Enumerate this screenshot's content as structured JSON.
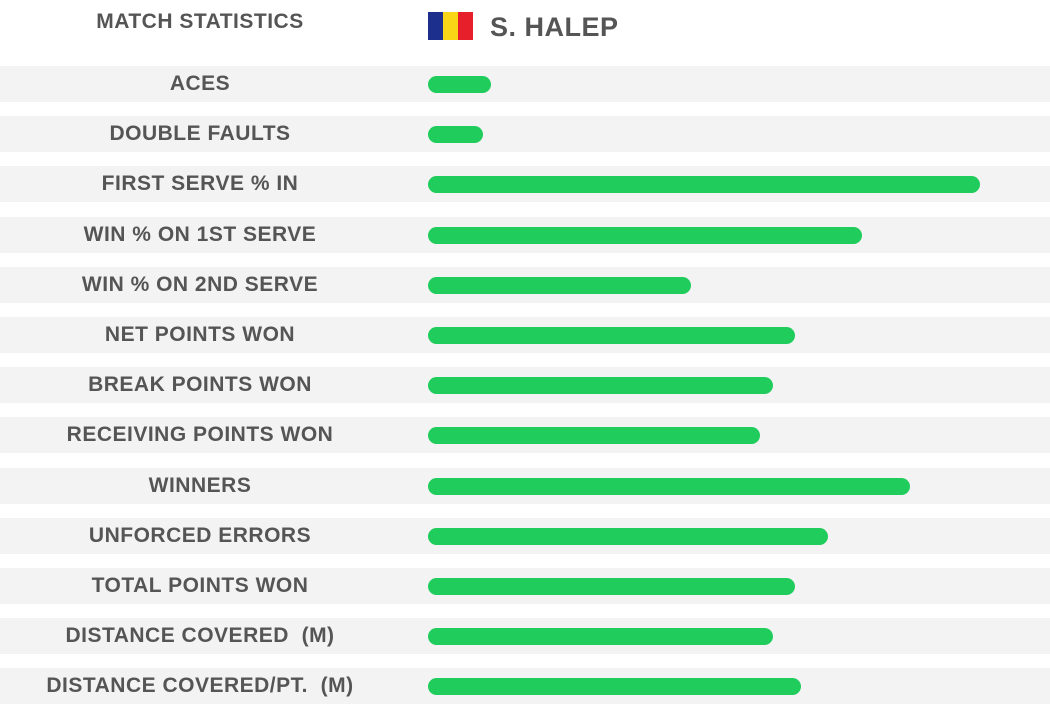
{
  "header": {
    "title": "MATCH STATISTICS",
    "player_name": "S. HALEP",
    "flag_colors": [
      "#1c2f8c",
      "#f9d616",
      "#e61f2b"
    ],
    "flag-icon": "romania-flag-icon"
  },
  "bar_color": "#1fcc5c",
  "stats": [
    {
      "label": "ACES",
      "level": 0.115
    },
    {
      "label": "DOUBLE FAULTS",
      "level": 0.1
    },
    {
      "label": "FIRST SERVE % IN",
      "level": 1.0
    },
    {
      "label": "WIN % ON 1ST SERVE",
      "level": 0.787
    },
    {
      "label": "WIN % ON 2ND SERVE",
      "level": 0.476
    },
    {
      "label": "NET POINTS WON",
      "level": 0.664
    },
    {
      "label": "BREAK POINTS WON",
      "level": 0.625
    },
    {
      "label": "RECEIVING POINTS WON",
      "level": 0.602
    },
    {
      "label": "WINNERS",
      "level": 0.873
    },
    {
      "label": "UNFORCED ERRORS",
      "level": 0.725
    },
    {
      "label": "TOTAL POINTS WON",
      "level": 0.664
    },
    {
      "label": "DISTANCE COVERED  (M)",
      "level": 0.625
    },
    {
      "label": "DISTANCE COVERED/PT.  (M)",
      "level": 0.675
    }
  ]
}
